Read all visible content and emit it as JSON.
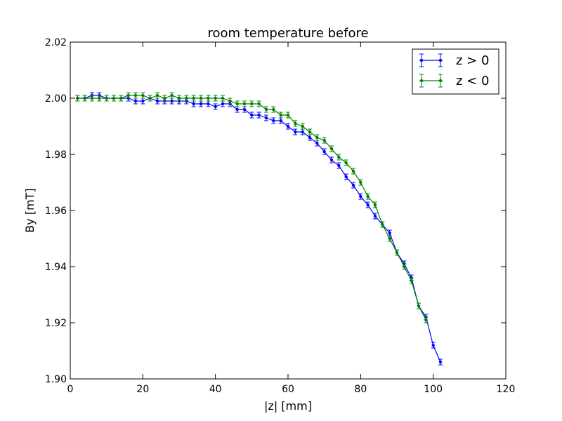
{
  "chart_data": {
    "type": "line",
    "title": "room temperature before",
    "xlabel": "|z| [mm]",
    "ylabel": "By [mT]",
    "xlim": [
      0,
      120
    ],
    "ylim": [
      1.9,
      2.02
    ],
    "xticks": [
      "0",
      "20",
      "40",
      "60",
      "80",
      "100",
      "120"
    ],
    "yticks": [
      "1.90",
      "1.92",
      "1.94",
      "1.96",
      "1.98",
      "2.00",
      "2.02"
    ],
    "grid": false,
    "legend_position": "top-right",
    "series": [
      {
        "name": "z > 0",
        "color": "#0000ff",
        "x": [
          2,
          4,
          6,
          8,
          10,
          12,
          14,
          16,
          18,
          20,
          22,
          24,
          26,
          28,
          30,
          32,
          34,
          36,
          38,
          40,
          42,
          44,
          46,
          48,
          50,
          52,
          54,
          56,
          58,
          60,
          62,
          64,
          66,
          68,
          70,
          72,
          74,
          76,
          78,
          80,
          82,
          84,
          86,
          88,
          90,
          92,
          94,
          96,
          98,
          100,
          102
        ],
        "y": [
          2.0,
          2.0,
          2.001,
          2.001,
          2.0,
          2.0,
          2.0,
          2.0,
          1.999,
          1.999,
          2.0,
          1.999,
          1.999,
          1.999,
          1.999,
          1.999,
          1.998,
          1.998,
          1.998,
          1.997,
          1.998,
          1.998,
          1.996,
          1.996,
          1.994,
          1.994,
          1.993,
          1.992,
          1.992,
          1.99,
          1.988,
          1.988,
          1.986,
          1.984,
          1.981,
          1.978,
          1.976,
          1.972,
          1.969,
          1.965,
          1.962,
          1.958,
          1.955,
          1.952,
          1.945,
          1.941,
          1.936,
          1.926,
          1.922,
          1.912,
          1.906
        ],
        "error": 0.001
      },
      {
        "name": "z < 0",
        "color": "#008000",
        "x": [
          2,
          4,
          6,
          8,
          10,
          12,
          14,
          16,
          18,
          20,
          22,
          24,
          26,
          28,
          30,
          32,
          34,
          36,
          38,
          40,
          42,
          44,
          46,
          48,
          50,
          52,
          54,
          56,
          58,
          60,
          62,
          64,
          66,
          68,
          70,
          72,
          74,
          76,
          78,
          80,
          82,
          84,
          86,
          88,
          90,
          92,
          94,
          96,
          98
        ],
        "y": [
          2.0,
          2.0,
          2.0,
          2.0,
          2.0,
          2.0,
          2.0,
          2.001,
          2.001,
          2.001,
          2.0,
          2.001,
          2.0,
          2.001,
          2.0,
          2.0,
          2.0,
          2.0,
          2.0,
          2.0,
          2.0,
          1.999,
          1.998,
          1.998,
          1.998,
          1.998,
          1.996,
          1.996,
          1.994,
          1.994,
          1.991,
          1.99,
          1.988,
          1.986,
          1.985,
          1.982,
          1.979,
          1.977,
          1.974,
          1.97,
          1.965,
          1.962,
          1.955,
          1.95,
          1.945,
          1.94,
          1.935,
          1.926,
          1.921
        ],
        "error": 0.001
      }
    ]
  }
}
